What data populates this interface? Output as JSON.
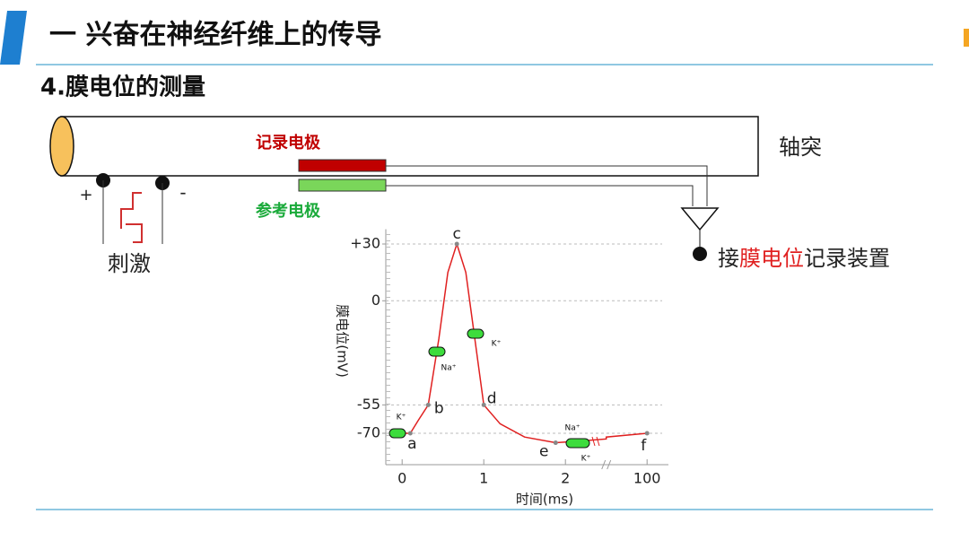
{
  "header": {
    "title": "一 兴奋在神经纤维上的传导",
    "subtitle": "4.膜电位的测量"
  },
  "diagram": {
    "axon": "轴突",
    "recording_electrode": "记录电极",
    "reference_electrode": "参考电极",
    "stimulus": "刺激",
    "plus": "+",
    "minus": "-",
    "recorder": {
      "prefix": "接",
      "highlight": "膜电位",
      "suffix": "记录装置"
    }
  },
  "chart_data": {
    "type": "line",
    "ylabel": "膜电位(mV)",
    "xlabel": "时间(ms)",
    "ylim": [
      -85,
      35
    ],
    "yticks": [
      {
        "value": 30,
        "label": "+30"
      },
      0,
      -55,
      -70
    ],
    "xlim": [
      -0.2,
      100.2
    ],
    "xticks": [
      0,
      1,
      2,
      100
    ],
    "xbreak": [
      2.5,
      99.5
    ],
    "grid": true,
    "series": [
      {
        "color": "#e02020",
        "x": [
          -0.15,
          0,
          0.1,
          0.2,
          0.32,
          0.45,
          0.56,
          0.67,
          0.78,
          0.89,
          1.0,
          1.2,
          1.5,
          1.88,
          2.2,
          2.5,
          99.5,
          100
        ],
        "values": [
          -70,
          -70,
          -70,
          -63,
          -55,
          -20,
          15,
          30,
          15,
          -20,
          -55,
          -65,
          -72,
          -75,
          -74,
          -73,
          -72,
          -70
        ]
      }
    ],
    "points": [
      {
        "label": "a",
        "x": 0.1,
        "y": -70
      },
      {
        "label": "b",
        "x": 0.32,
        "y": -55
      },
      {
        "label": "c",
        "x": 0.67,
        "y": 30
      },
      {
        "label": "d",
        "x": 1.0,
        "y": -55
      },
      {
        "label": "e",
        "x": 1.88,
        "y": -75
      },
      {
        "label": "f",
        "x": 100,
        "y": -70
      }
    ],
    "ions": [
      "K⁺",
      "Na⁺",
      "K⁺",
      "Na⁺",
      "K⁺"
    ]
  }
}
